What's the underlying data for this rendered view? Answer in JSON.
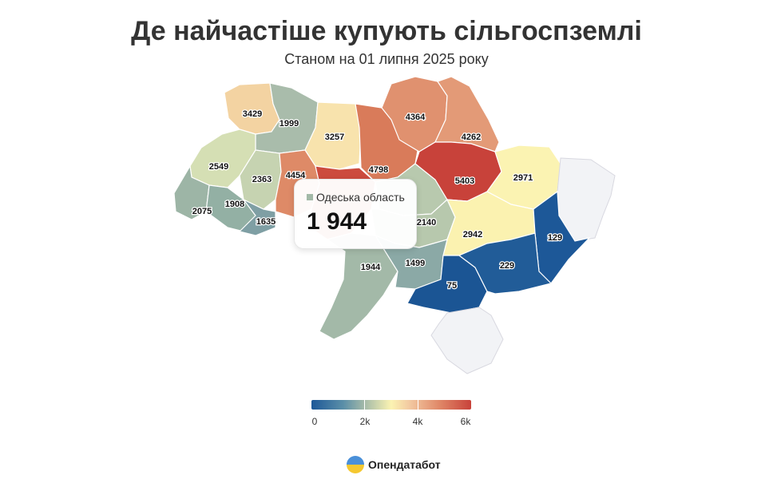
{
  "header": {
    "title": "Де найчастіше купують сільгоспземлі",
    "subtitle": "Станом на 01 липня 2025 року"
  },
  "map_data": {
    "value_field": "Кількість угод",
    "regions": [
      {
        "id": "volyn",
        "value": 3429,
        "color": "#f3d3a2"
      },
      {
        "id": "rivne",
        "value": 1999,
        "color": "#a9bcab"
      },
      {
        "id": "zhytomyr",
        "value": 3257,
        "color": "#f8e3ad"
      },
      {
        "id": "kyiv",
        "value": 4798,
        "color": "#d97b5a"
      },
      {
        "id": "chernihiv",
        "value": 4364,
        "color": "#e0916f"
      },
      {
        "id": "sumy",
        "value": 4262,
        "color": "#e39a77"
      },
      {
        "id": "lviv",
        "value": 2549,
        "color": "#d5dfb4"
      },
      {
        "id": "ternopil",
        "value": 2363,
        "color": "#c6d3b1"
      },
      {
        "id": "khmelnytskyi",
        "value": 4454,
        "color": "#de8a67"
      },
      {
        "id": "vinnytsia",
        "value": null,
        "color": "#cc4b3e"
      },
      {
        "id": "cherkasy",
        "value": null,
        "color": "#b8c9ae"
      },
      {
        "id": "poltava",
        "value": 5403,
        "color": "#c8423a"
      },
      {
        "id": "kharkiv",
        "value": 2971,
        "color": "#fbf3b2"
      },
      {
        "id": "luhansk",
        "value": null,
        "color": "#f2f3f6"
      },
      {
        "id": "zakarpattia",
        "value": 2075,
        "color": "#9db5a6"
      },
      {
        "id": "ivano-frankivsk",
        "value": 1908,
        "color": "#93b0a4"
      },
      {
        "id": "chernivtsi",
        "value": 1635,
        "color": "#7f9fa4"
      },
      {
        "id": "kirovohrad",
        "value": 2140,
        "color": "#b7c8ad"
      },
      {
        "id": "dnipropetrovsk",
        "value": 2942,
        "color": "#fbf2b0"
      },
      {
        "id": "donetsk",
        "value": 129,
        "color": "#1d5898"
      },
      {
        "id": "odesa",
        "value": 1944,
        "color": "#a3b9a8"
      },
      {
        "id": "mykolaiv",
        "value": 1499,
        "color": "#8ba9a6"
      },
      {
        "id": "kherson",
        "value": 75,
        "color": "#1b5594"
      },
      {
        "id": "zaporizhzhia",
        "value": 229,
        "color": "#215c98"
      },
      {
        "id": "crimea",
        "value": null,
        "color": "#f2f3f6"
      }
    ]
  },
  "tooltip": {
    "region_name": "Одеська область",
    "value": "1 944",
    "swatch_color": "#a3b9a8"
  },
  "legend": {
    "min": 0,
    "max": 6000,
    "labels": [
      "0",
      "2k",
      "4k",
      "6k"
    ],
    "colors": [
      "#1d5898",
      "#a3b9a8",
      "#fbf3b2",
      "#e08868",
      "#c8423a"
    ]
  },
  "brand": {
    "name": "Опендатабот",
    "icon": "opendatabot-logo-icon"
  }
}
